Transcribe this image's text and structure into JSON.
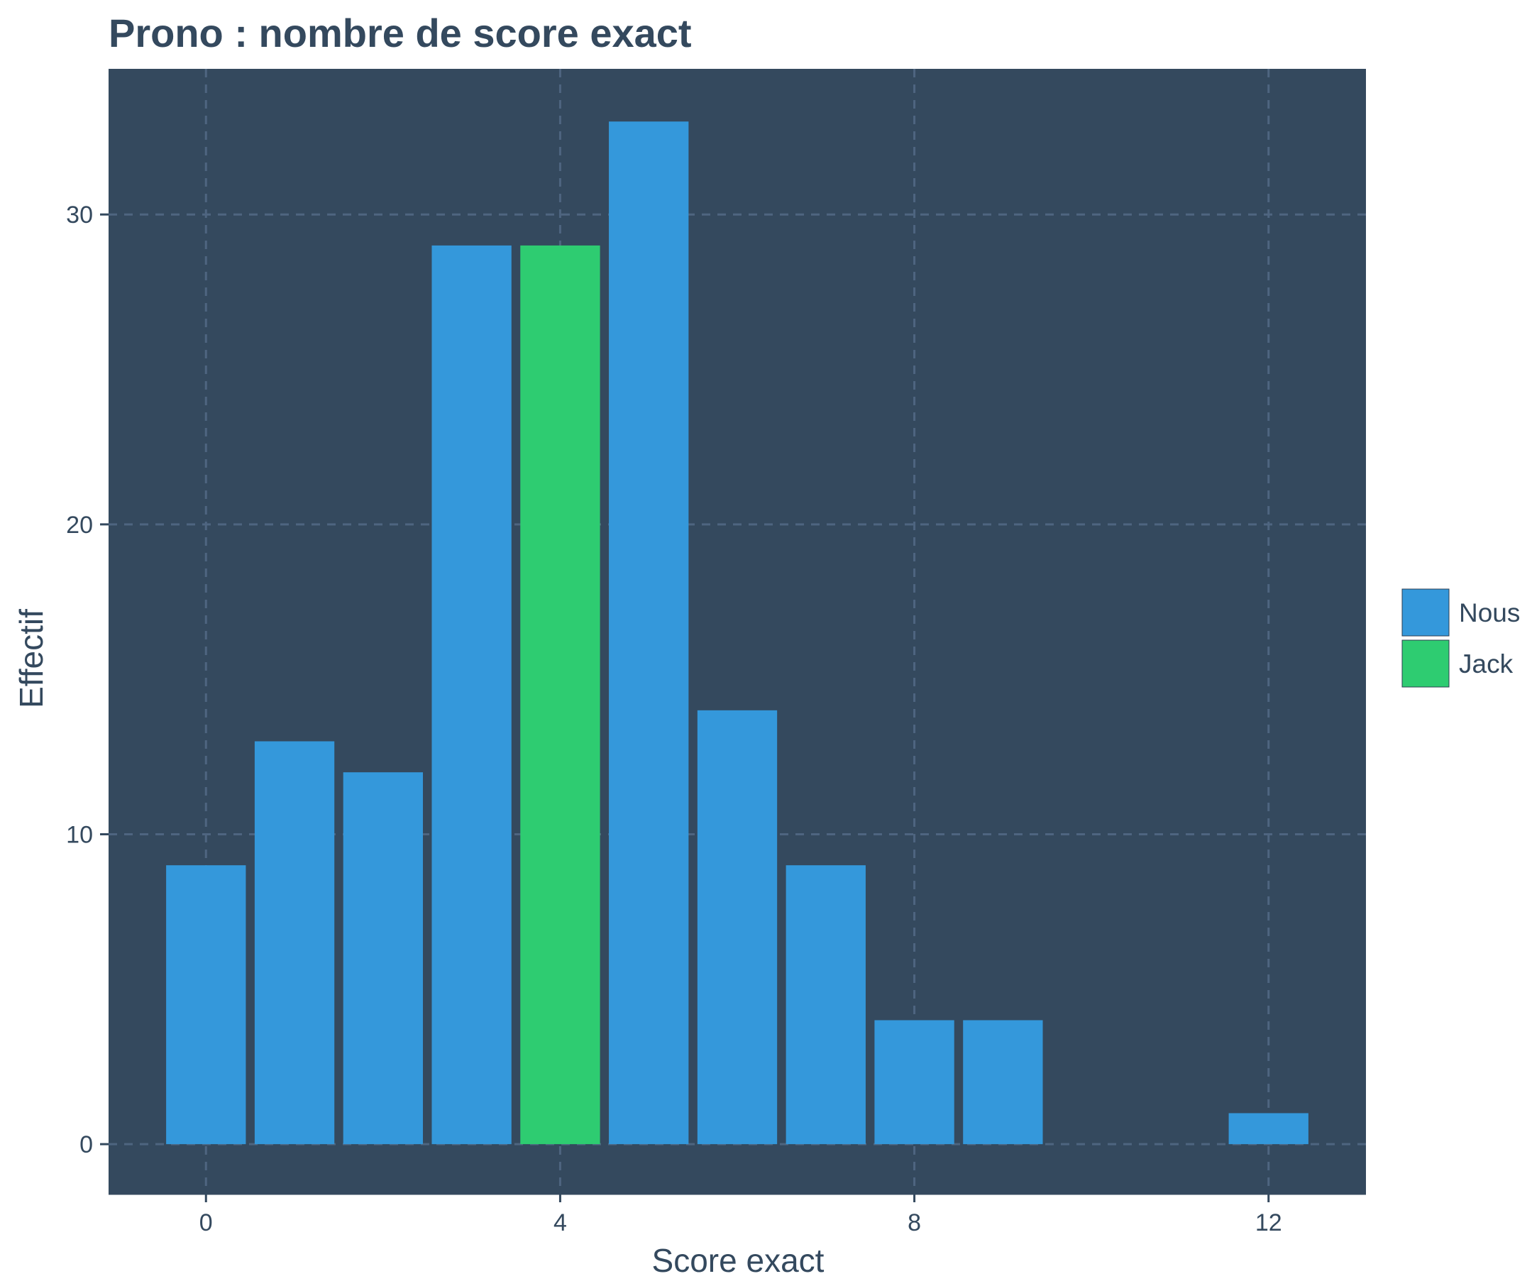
{
  "chart_data": {
    "type": "bar",
    "title": "Prono : nombre de score exact",
    "xlabel": "Score exact",
    "ylabel": "Effectif",
    "x_ticks": [
      0,
      4,
      8,
      12
    ],
    "y_ticks": [
      0,
      10,
      20,
      30
    ],
    "xlim": [
      -1.1,
      13.1
    ],
    "ylim": [
      -1.6,
      34.7
    ],
    "grid": true,
    "legend_position": "right",
    "colors": {
      "panel": "#34495e",
      "grid": "#4e6580",
      "text": "#34495e",
      "Nous": "#3498db",
      "Jack": "#2ecc71"
    },
    "series": [
      {
        "name": "Nous",
        "color": "#3498db"
      },
      {
        "name": "Jack",
        "color": "#2ecc71"
      }
    ],
    "bars": [
      {
        "x": 0,
        "value": 9,
        "series": "Nous"
      },
      {
        "x": 1,
        "value": 13,
        "series": "Nous"
      },
      {
        "x": 2,
        "value": 12,
        "series": "Nous"
      },
      {
        "x": 3,
        "value": 29,
        "series": "Nous"
      },
      {
        "x": 4,
        "value": 29,
        "series": "Jack"
      },
      {
        "x": 5,
        "value": 33,
        "series": "Nous"
      },
      {
        "x": 6,
        "value": 14,
        "series": "Nous"
      },
      {
        "x": 7,
        "value": 9,
        "series": "Nous"
      },
      {
        "x": 8,
        "value": 4,
        "series": "Nous"
      },
      {
        "x": 9,
        "value": 4,
        "series": "Nous"
      },
      {
        "x": 12,
        "value": 1,
        "series": "Nous"
      }
    ]
  }
}
